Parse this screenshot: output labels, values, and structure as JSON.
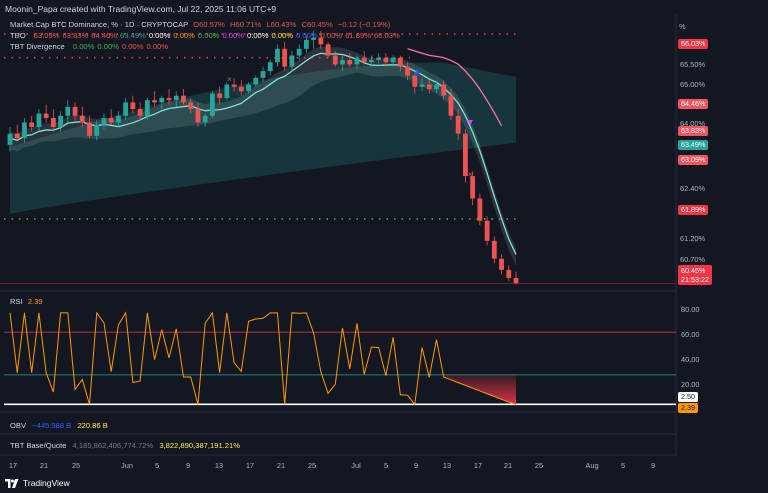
{
  "header": {
    "credit": "Moonin_Papa created with TradingView.com, Jul 22, 2025 11:06 UTC+9"
  },
  "legend": {
    "line1": {
      "label": "Market Cap BTC Dominance, % · 1D · CRYPTOCAP",
      "o": "O60.57%",
      "h": "H60.71%",
      "l": "L60.43%",
      "c": "C60.45%",
      "chg": "−0.12 (−0.19%)"
    },
    "line2": {
      "label": "TBO",
      "values": [
        "63.09%",
        "63.83%",
        "64.46%",
        "63.49%",
        "0.00%",
        "0.00%",
        "0.00%",
        "0.00%",
        "0.00%",
        "0.00%",
        "0.00%",
        "0.00%",
        "61.89%",
        "66.03%"
      ],
      "colors": [
        "#ef5350",
        "#ef5350",
        "#ef5350",
        "#26a69a",
        "#ffffff",
        "#ff9800",
        "#4caf50",
        "#e040fb",
        "#f5f5f5",
        "#ffeb3b",
        "#2962ff",
        "#ef5350",
        "#ef5350",
        "#ef5350"
      ]
    },
    "line3": {
      "label": "TBT Divergence",
      "values": [
        "0.00%",
        "0.00%",
        "0.00%",
        "0.00%"
      ],
      "colors": [
        "#4caf50",
        "#4caf50",
        "#ef5350",
        "#ef5350"
      ]
    }
  },
  "right_axis": {
    "unit": "%",
    "ticks": [
      "65.50%",
      "65.00%",
      "64.00%",
      "62.40%",
      "61.20%",
      "60.70%"
    ],
    "tags": [
      {
        "text": "66.03%",
        "bg": "#f23645",
        "fg": "#ffffff"
      },
      {
        "text": "64.46%",
        "bg": "#f7525f",
        "fg": "#ffffff"
      },
      {
        "text": "63.83%",
        "bg": "#f7525f",
        "fg": "#ffffff"
      },
      {
        "text": "63.49%",
        "bg": "#26a69a",
        "fg": "#ffffff"
      },
      {
        "text": "63.09%",
        "bg": "#f7525f",
        "fg": "#ffffff"
      },
      {
        "text": "61.89%",
        "bg": "#f23645",
        "fg": "#ffffff"
      }
    ],
    "current": {
      "price": "60.45%",
      "countdown": "21:53:22"
    }
  },
  "rsi": {
    "label": "RSI",
    "value": "2.39",
    "ticks": [
      "80.00",
      "60.00",
      "40.00",
      "20.00"
    ],
    "tag_high": "2.50",
    "tag_val": "2.39"
  },
  "obv": {
    "label": "OBV",
    "v1": "−445.988 B",
    "v2": "220.86 B"
  },
  "tbt": {
    "label": "TBT Base/Quote",
    "v1": "4,185,862,406,774.72%",
    "v2": "3,822,890,387,191.21%"
  },
  "x_axis": [
    "17",
    "21",
    "25",
    "Jun",
    "5",
    "9",
    "13",
    "17",
    "21",
    "25",
    "Jul",
    "5",
    "9",
    "13",
    "17",
    "21",
    "25",
    "Aug",
    "5",
    "9"
  ],
  "footer": {
    "brand": "TradingView"
  },
  "colors": {
    "up": "#26a69a",
    "down": "#ef5350",
    "bg": "#131722",
    "ma_fast": "#7fe3d6",
    "ma_slow": "#ff6fa6",
    "rsi_line": "#ff9800",
    "band_top": "#f23645",
    "band_bottom": "#26a69a"
  },
  "chart_data": {
    "type": "candlestick",
    "title": "Market Cap BTC Dominance, % · 1D · CRYPTOCAP",
    "ylim": [
      60.3,
      66.3
    ],
    "candles": [
      [
        63.55,
        63.95,
        63.4,
        63.8
      ],
      [
        63.8,
        64.0,
        63.65,
        63.7
      ],
      [
        63.7,
        64.15,
        63.6,
        64.05
      ],
      [
        64.05,
        64.2,
        63.85,
        63.95
      ],
      [
        63.95,
        64.35,
        63.85,
        64.25
      ],
      [
        64.25,
        64.45,
        64.05,
        64.15
      ],
      [
        64.15,
        64.35,
        63.85,
        63.95
      ],
      [
        63.95,
        64.3,
        63.85,
        64.2
      ],
      [
        64.2,
        64.55,
        64.05,
        64.4
      ],
      [
        64.4,
        64.5,
        64.1,
        64.2
      ],
      [
        64.2,
        64.4,
        63.95,
        64.05
      ],
      [
        64.05,
        64.2,
        63.7,
        63.75
      ],
      [
        63.75,
        64.1,
        63.65,
        64.0
      ],
      [
        64.0,
        64.25,
        63.9,
        64.15
      ],
      [
        64.15,
        64.35,
        64.0,
        64.05
      ],
      [
        64.05,
        64.3,
        63.95,
        64.2
      ],
      [
        64.2,
        64.6,
        64.1,
        64.5
      ],
      [
        64.5,
        64.65,
        64.25,
        64.35
      ],
      [
        64.35,
        64.5,
        64.1,
        64.2
      ],
      [
        64.2,
        64.6,
        64.1,
        64.55
      ],
      [
        64.55,
        64.75,
        64.4,
        64.5
      ],
      [
        64.5,
        64.65,
        64.35,
        64.6
      ],
      [
        64.6,
        64.8,
        64.45,
        64.55
      ],
      [
        64.55,
        64.75,
        64.4,
        64.65
      ],
      [
        64.65,
        64.8,
        64.45,
        64.5
      ],
      [
        64.5,
        64.6,
        64.25,
        64.35
      ],
      [
        64.35,
        64.5,
        63.95,
        64.05
      ],
      [
        64.05,
        64.25,
        63.95,
        64.2
      ],
      [
        64.2,
        64.75,
        64.15,
        64.7
      ],
      [
        64.7,
        64.85,
        64.45,
        64.6
      ],
      [
        64.6,
        64.95,
        64.55,
        64.9
      ],
      [
        64.9,
        65.05,
        64.75,
        64.85
      ],
      [
        64.85,
        65.0,
        64.65,
        64.75
      ],
      [
        64.75,
        64.95,
        64.7,
        64.9
      ],
      [
        64.9,
        65.1,
        64.85,
        65.05
      ],
      [
        65.05,
        65.3,
        64.95,
        65.2
      ],
      [
        65.2,
        65.45,
        65.1,
        65.4
      ],
      [
        65.4,
        65.8,
        65.3,
        65.7
      ],
      [
        65.7,
        65.85,
        65.2,
        65.3
      ],
      [
        65.3,
        65.65,
        65.2,
        65.55
      ],
      [
        65.55,
        65.8,
        65.45,
        65.7
      ],
      [
        65.7,
        66.0,
        65.6,
        65.9
      ],
      [
        65.9,
        66.1,
        65.7,
        65.95
      ],
      [
        65.95,
        66.1,
        65.7,
        65.8
      ],
      [
        65.8,
        65.85,
        65.5,
        65.55
      ],
      [
        65.55,
        65.65,
        65.3,
        65.35
      ],
      [
        65.35,
        65.55,
        65.2,
        65.45
      ],
      [
        65.45,
        65.6,
        65.3,
        65.35
      ],
      [
        65.35,
        65.55,
        65.25,
        65.5
      ],
      [
        65.5,
        65.65,
        65.35,
        65.4
      ],
      [
        65.4,
        65.55,
        65.3,
        65.45
      ],
      [
        65.45,
        65.6,
        65.35,
        65.5
      ],
      [
        65.5,
        65.6,
        65.3,
        65.4
      ],
      [
        65.4,
        65.55,
        65.3,
        65.5
      ],
      [
        65.5,
        65.55,
        65.2,
        65.3
      ],
      [
        65.3,
        65.4,
        65.0,
        65.1
      ],
      [
        65.1,
        65.15,
        64.7,
        64.85
      ],
      [
        64.85,
        65.05,
        64.75,
        64.9
      ],
      [
        64.9,
        65.0,
        64.7,
        64.8
      ],
      [
        64.8,
        64.95,
        64.7,
        64.9
      ],
      [
        64.9,
        65.0,
        64.55,
        64.65
      ],
      [
        64.65,
        64.8,
        64.1,
        64.2
      ],
      [
        64.2,
        64.35,
        63.65,
        63.8
      ],
      [
        63.8,
        63.9,
        62.7,
        62.85
      ],
      [
        62.85,
        62.95,
        62.2,
        62.35
      ],
      [
        62.35,
        62.45,
        61.75,
        61.85
      ],
      [
        61.85,
        61.95,
        61.3,
        61.4
      ],
      [
        61.4,
        61.5,
        60.9,
        61.0
      ],
      [
        61.0,
        61.1,
        60.65,
        60.75
      ],
      [
        60.75,
        60.85,
        60.5,
        60.57
      ],
      [
        60.57,
        60.71,
        60.43,
        60.45
      ]
    ],
    "rsi": {
      "ylim": [
        0,
        100
      ],
      "upper_band": 70,
      "lower_band": 30,
      "last": 2.39
    },
    "levels": [
      "66.03%",
      "61.89%"
    ]
  }
}
